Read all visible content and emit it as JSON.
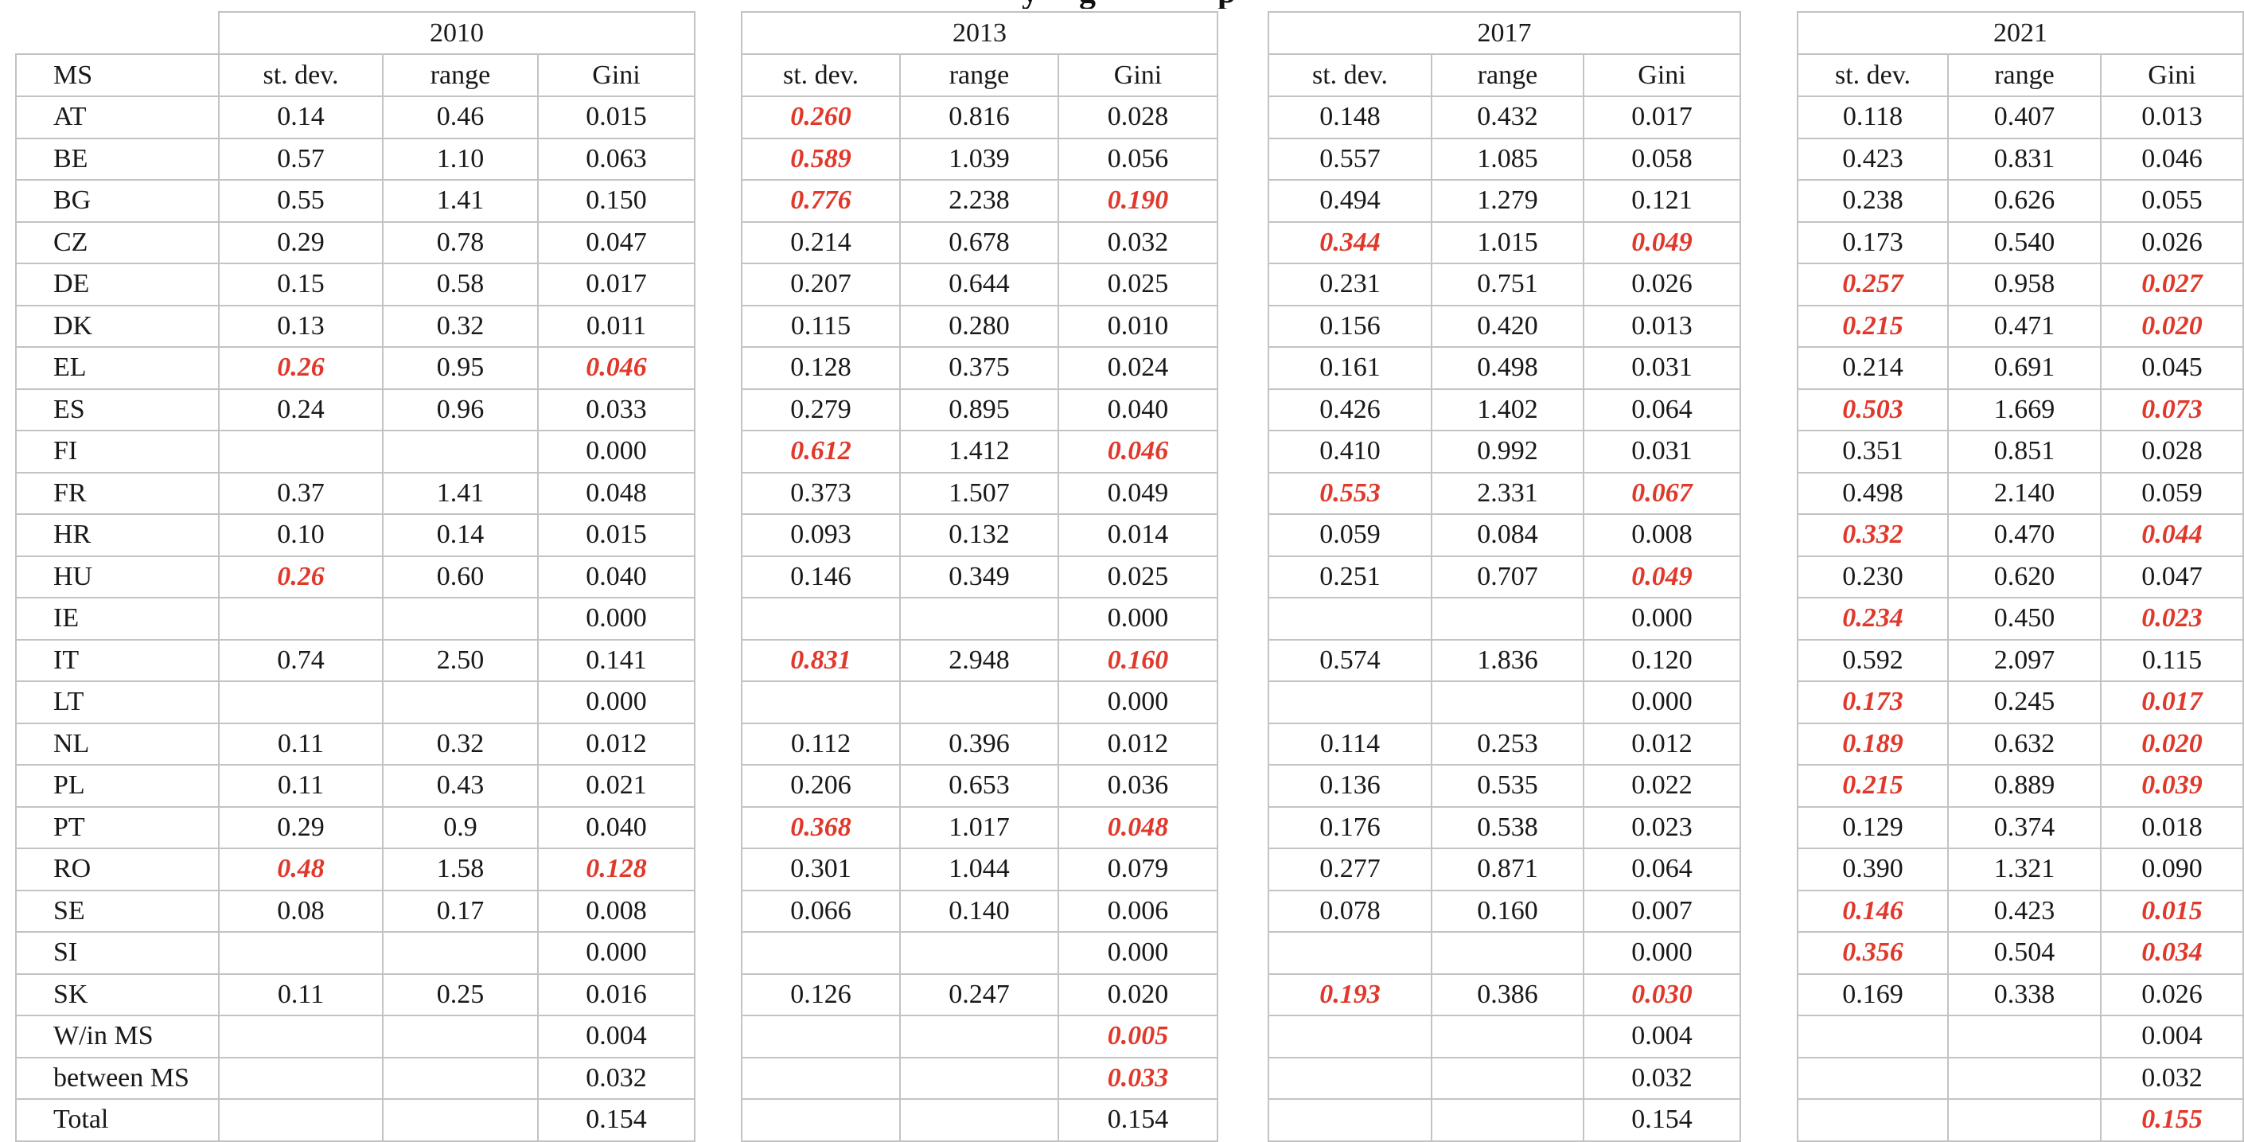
{
  "page": {
    "cropped_title_fragments": [
      "y",
      "g",
      "p"
    ]
  },
  "colors": {
    "red_highlight": "#e0392c",
    "grid_line": "#c3c3c3",
    "text": "#181818"
  },
  "table": {
    "corner_label": "MS",
    "year_blocks": [
      "2010",
      "2013",
      "2017",
      "2021"
    ],
    "sub_headers": [
      "st. dev.",
      "range",
      "Gini"
    ],
    "rows": [
      {
        "ms": "AT",
        "cells": [
          [
            "0.14",
            "0.46",
            "0.015"
          ],
          [
            {
              "t": "0.260",
              "red": true
            },
            "0.816",
            "0.028"
          ],
          [
            "0.148",
            "0.432",
            "0.017"
          ],
          [
            "0.118",
            "0.407",
            "0.013"
          ]
        ]
      },
      {
        "ms": "BE",
        "cells": [
          [
            "0.57",
            "1.10",
            "0.063"
          ],
          [
            {
              "t": "0.589",
              "red": true
            },
            "1.039",
            "0.056"
          ],
          [
            "0.557",
            "1.085",
            "0.058"
          ],
          [
            "0.423",
            "0.831",
            "0.046"
          ]
        ]
      },
      {
        "ms": "BG",
        "cells": [
          [
            "0.55",
            "1.41",
            "0.150"
          ],
          [
            {
              "t": "0.776",
              "red": true
            },
            "2.238",
            {
              "t": "0.190",
              "red": true
            }
          ],
          [
            "0.494",
            "1.279",
            "0.121"
          ],
          [
            "0.238",
            "0.626",
            "0.055"
          ]
        ]
      },
      {
        "ms": "CZ",
        "cells": [
          [
            "0.29",
            "0.78",
            "0.047"
          ],
          [
            "0.214",
            "0.678",
            "0.032"
          ],
          [
            {
              "t": "0.344",
              "red": true
            },
            "1.015",
            {
              "t": "0.049",
              "red": true
            }
          ],
          [
            "0.173",
            "0.540",
            "0.026"
          ]
        ]
      },
      {
        "ms": "DE",
        "cells": [
          [
            "0.15",
            "0.58",
            "0.017"
          ],
          [
            "0.207",
            "0.644",
            "0.025"
          ],
          [
            "0.231",
            "0.751",
            "0.026"
          ],
          [
            {
              "t": "0.257",
              "red": true
            },
            "0.958",
            {
              "t": "0.027",
              "red": true
            }
          ]
        ]
      },
      {
        "ms": "DK",
        "cells": [
          [
            "0.13",
            "0.32",
            "0.011"
          ],
          [
            "0.115",
            "0.280",
            "0.010"
          ],
          [
            "0.156",
            "0.420",
            "0.013"
          ],
          [
            {
              "t": "0.215",
              "red": true
            },
            "0.471",
            {
              "t": "0.020",
              "red": true
            }
          ]
        ]
      },
      {
        "ms": "EL",
        "cells": [
          [
            {
              "t": "0.26",
              "red": true
            },
            "0.95",
            {
              "t": "0.046",
              "red": true
            }
          ],
          [
            "0.128",
            "0.375",
            "0.024"
          ],
          [
            "0.161",
            "0.498",
            "0.031"
          ],
          [
            "0.214",
            "0.691",
            "0.045"
          ]
        ]
      },
      {
        "ms": "ES",
        "cells": [
          [
            "0.24",
            "0.96",
            "0.033"
          ],
          [
            "0.279",
            "0.895",
            "0.040"
          ],
          [
            "0.426",
            "1.402",
            "0.064"
          ],
          [
            {
              "t": "0.503",
              "red": true
            },
            "1.669",
            {
              "t": "0.073",
              "red": true
            }
          ]
        ]
      },
      {
        "ms": "FI",
        "cells": [
          [
            "",
            "",
            "0.000"
          ],
          [
            {
              "t": "0.612",
              "red": true
            },
            "1.412",
            {
              "t": "0.046",
              "red": true
            }
          ],
          [
            "0.410",
            "0.992",
            "0.031"
          ],
          [
            "0.351",
            "0.851",
            "0.028"
          ]
        ]
      },
      {
        "ms": "FR",
        "cells": [
          [
            "0.37",
            "1.41",
            "0.048"
          ],
          [
            "0.373",
            "1.507",
            "0.049"
          ],
          [
            {
              "t": "0.553",
              "red": true
            },
            "2.331",
            {
              "t": "0.067",
              "red": true
            }
          ],
          [
            "0.498",
            "2.140",
            "0.059"
          ]
        ]
      },
      {
        "ms": "HR",
        "cells": [
          [
            "0.10",
            "0.14",
            "0.015"
          ],
          [
            "0.093",
            "0.132",
            "0.014"
          ],
          [
            "0.059",
            "0.084",
            "0.008"
          ],
          [
            {
              "t": "0.332",
              "red": true
            },
            "0.470",
            {
              "t": "0.044",
              "red": true
            }
          ]
        ]
      },
      {
        "ms": "HU",
        "cells": [
          [
            {
              "t": "0.26",
              "red": true
            },
            "0.60",
            "0.040"
          ],
          [
            "0.146",
            "0.349",
            "0.025"
          ],
          [
            "0.251",
            "0.707",
            {
              "t": "0.049",
              "red": true
            }
          ],
          [
            "0.230",
            "0.620",
            "0.047"
          ]
        ]
      },
      {
        "ms": "IE",
        "cells": [
          [
            "",
            "",
            "0.000"
          ],
          [
            "",
            "",
            "0.000"
          ],
          [
            "",
            "",
            "0.000"
          ],
          [
            {
              "t": "0.234",
              "red": true
            },
            "0.450",
            {
              "t": "0.023",
              "red": true
            }
          ]
        ]
      },
      {
        "ms": "IT",
        "cells": [
          [
            "0.74",
            "2.50",
            "0.141"
          ],
          [
            {
              "t": "0.831",
              "red": true
            },
            "2.948",
            {
              "t": "0.160",
              "red": true
            }
          ],
          [
            "0.574",
            "1.836",
            "0.120"
          ],
          [
            "0.592",
            "2.097",
            "0.115"
          ]
        ]
      },
      {
        "ms": "LT",
        "cells": [
          [
            "",
            "",
            "0.000"
          ],
          [
            "",
            "",
            "0.000"
          ],
          [
            "",
            "",
            "0.000"
          ],
          [
            {
              "t": "0.173",
              "red": true
            },
            "0.245",
            {
              "t": "0.017",
              "red": true
            }
          ]
        ]
      },
      {
        "ms": "NL",
        "cells": [
          [
            "0.11",
            "0.32",
            "0.012"
          ],
          [
            "0.112",
            "0.396",
            "0.012"
          ],
          [
            "0.114",
            "0.253",
            "0.012"
          ],
          [
            {
              "t": "0.189",
              "red": true
            },
            "0.632",
            {
              "t": "0.020",
              "red": true
            }
          ]
        ]
      },
      {
        "ms": "PL",
        "cells": [
          [
            "0.11",
            "0.43",
            "0.021"
          ],
          [
            "0.206",
            "0.653",
            "0.036"
          ],
          [
            "0.136",
            "0.535",
            "0.022"
          ],
          [
            {
              "t": "0.215",
              "red": true
            },
            "0.889",
            {
              "t": "0.039",
              "red": true
            }
          ]
        ]
      },
      {
        "ms": "PT",
        "cells": [
          [
            "0.29",
            "0.9",
            "0.040"
          ],
          [
            {
              "t": "0.368",
              "red": true
            },
            "1.017",
            {
              "t": "0.048",
              "red": true
            }
          ],
          [
            "0.176",
            "0.538",
            "0.023"
          ],
          [
            "0.129",
            "0.374",
            "0.018"
          ]
        ]
      },
      {
        "ms": "RO",
        "cells": [
          [
            {
              "t": "0.48",
              "red": true
            },
            "1.58",
            {
              "t": "0.128",
              "red": true
            }
          ],
          [
            "0.301",
            "1.044",
            "0.079"
          ],
          [
            "0.277",
            "0.871",
            "0.064"
          ],
          [
            "0.390",
            "1.321",
            "0.090"
          ]
        ]
      },
      {
        "ms": "SE",
        "cells": [
          [
            "0.08",
            "0.17",
            "0.008"
          ],
          [
            "0.066",
            "0.140",
            "0.006"
          ],
          [
            "0.078",
            "0.160",
            "0.007"
          ],
          [
            {
              "t": "0.146",
              "red": true
            },
            "0.423",
            {
              "t": "0.015",
              "red": true
            }
          ]
        ]
      },
      {
        "ms": "SI",
        "cells": [
          [
            "",
            "",
            "0.000"
          ],
          [
            "",
            "",
            "0.000"
          ],
          [
            "",
            "",
            "0.000"
          ],
          [
            {
              "t": "0.356",
              "red": true
            },
            "0.504",
            {
              "t": "0.034",
              "red": true
            }
          ]
        ]
      },
      {
        "ms": "SK",
        "cells": [
          [
            "0.11",
            "0.25",
            "0.016"
          ],
          [
            "0.126",
            "0.247",
            "0.020"
          ],
          [
            {
              "t": "0.193",
              "red": true
            },
            "0.386",
            {
              "t": "0.030",
              "red": true
            }
          ],
          [
            "0.169",
            "0.338",
            "0.026"
          ]
        ]
      },
      {
        "ms": "W/in MS",
        "cells": [
          [
            "",
            "",
            "0.004"
          ],
          [
            "",
            "",
            {
              "t": "0.005",
              "red": true
            }
          ],
          [
            "",
            "",
            "0.004"
          ],
          [
            "",
            "",
            "0.004"
          ]
        ]
      },
      {
        "ms": "between MS",
        "cells": [
          [
            "",
            "",
            "0.032"
          ],
          [
            "",
            "",
            {
              "t": "0.033",
              "red": true
            }
          ],
          [
            "",
            "",
            "0.032"
          ],
          [
            "",
            "",
            "0.032"
          ]
        ]
      },
      {
        "ms": "Total",
        "cells": [
          [
            "",
            "",
            "0.154"
          ],
          [
            "",
            "",
            "0.154"
          ],
          [
            "",
            "",
            "0.154"
          ],
          [
            "",
            "",
            {
              "t": "0.155",
              "red": true
            }
          ]
        ]
      }
    ]
  }
}
